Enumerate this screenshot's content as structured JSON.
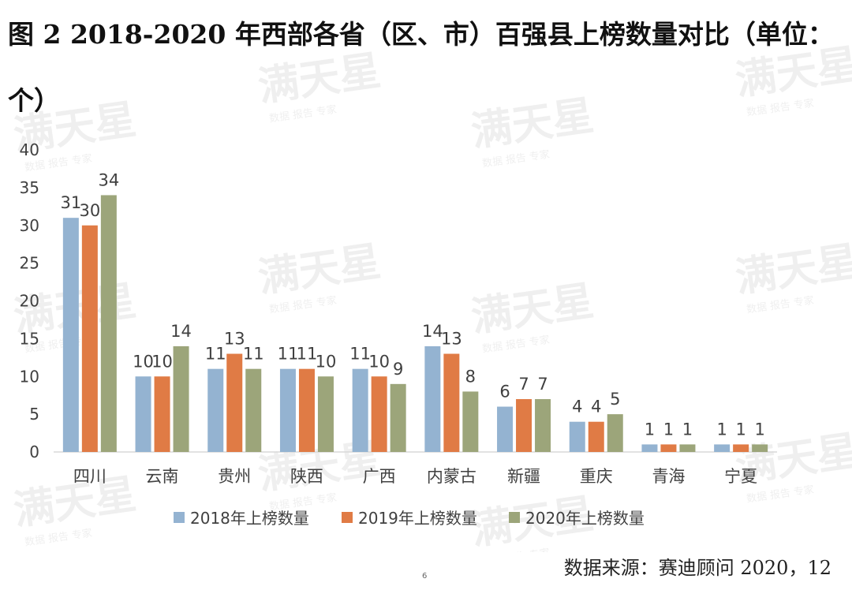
{
  "title": "图 2   2018-2020 年西部各省（区、市）百强县上榜数量对比（单位：个）",
  "source": "数据来源：赛迪顾问 2020，12",
  "page_number": "6",
  "watermark": {
    "text": "满天星",
    "subtext": "数据 报告 专家"
  },
  "colors": {
    "s2018": "#94b3d1",
    "s2019": "#e07b45",
    "s2020": "#9ca57a",
    "axis": "#d9d9d9",
    "text": "#404040"
  },
  "chart_data": {
    "type": "bar",
    "title": "",
    "xlabel": "",
    "ylabel": "",
    "ylim": [
      0,
      40
    ],
    "yticks": [
      0,
      5,
      10,
      15,
      20,
      25,
      30,
      35,
      40
    ],
    "categories": [
      "四川",
      "云南",
      "贵州",
      "陕西",
      "广西",
      "内蒙古",
      "新疆",
      "重庆",
      "青海",
      "宁夏"
    ],
    "series": [
      {
        "name": "2018年上榜数量",
        "values": [
          31,
          10,
          11,
          11,
          11,
          14,
          6,
          4,
          1,
          1
        ]
      },
      {
        "name": "2019年上榜数量",
        "values": [
          30,
          10,
          13,
          11,
          10,
          13,
          7,
          4,
          1,
          1
        ]
      },
      {
        "name": "2020年上榜数量",
        "values": [
          34,
          14,
          11,
          10,
          9,
          8,
          7,
          5,
          1,
          1
        ]
      }
    ],
    "legend": "bottom",
    "grid": false
  }
}
